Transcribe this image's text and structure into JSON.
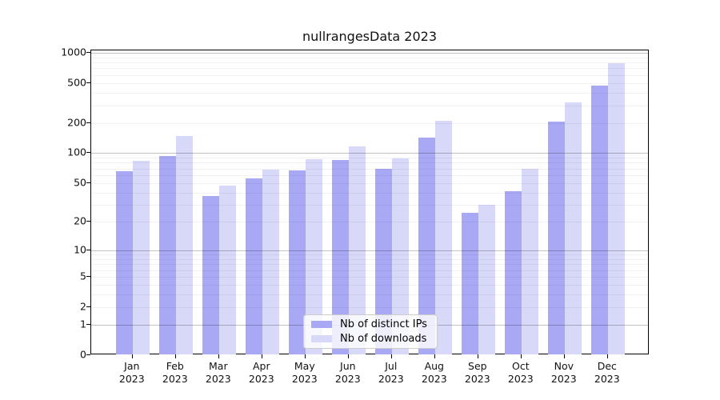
{
  "figure": {
    "title": "nullrangesData 2023",
    "background": "#ffffff"
  },
  "legend": {
    "items": [
      {
        "label": "Nb of distinct IPs",
        "color": "#a8a8f5"
      },
      {
        "label": "Nb of downloads",
        "color": "#d8d8f8"
      }
    ]
  },
  "axes": {
    "y_tick_labels": [
      "1000",
      "500",
      "200",
      "100",
      "50",
      "20",
      "10",
      "5",
      "2",
      "1",
      "0"
    ],
    "x_tick_year": "2023",
    "x_tick_months": [
      "Jan",
      "Feb",
      "Mar",
      "Apr",
      "May",
      "Jun",
      "Jul",
      "Aug",
      "Sep",
      "Oct",
      "Nov",
      "Dec"
    ]
  },
  "chart_data": {
    "type": "bar",
    "title": "nullrangesData 2023",
    "categories": [
      "Jan 2023",
      "Feb 2023",
      "Mar 2023",
      "Apr 2023",
      "May 2023",
      "Jun 2023",
      "Jul 2023",
      "Aug 2023",
      "Sep 2023",
      "Oct 2023",
      "Nov 2023",
      "Dec 2023"
    ],
    "series": [
      {
        "name": "Nb of distinct IPs",
        "color": "#a8a8f5",
        "values": [
          66,
          93,
          37,
          56,
          67,
          86,
          70,
          144,
          25,
          41,
          208,
          470
        ]
      },
      {
        "name": "Nb of downloads",
        "color": "#d8d8f8",
        "values": [
          83,
          148,
          47,
          68,
          87,
          116,
          88,
          210,
          30,
          70,
          320,
          790
        ]
      }
    ],
    "xlabel": "",
    "ylabel": "",
    "yscale": "log1p",
    "yticks": [
      0,
      1,
      2,
      5,
      10,
      20,
      50,
      100,
      200,
      500,
      1000
    ],
    "minor_grid_values": [
      3,
      4,
      6,
      7,
      8,
      9,
      30,
      40,
      60,
      70,
      80,
      90,
      300,
      400,
      600,
      700,
      800,
      900
    ],
    "major_grid_values": [
      1,
      10,
      100,
      1000
    ],
    "ylim": [
      0,
      1050
    ],
    "grid": "horizontal",
    "legend_position": "bottom-center-inside"
  }
}
